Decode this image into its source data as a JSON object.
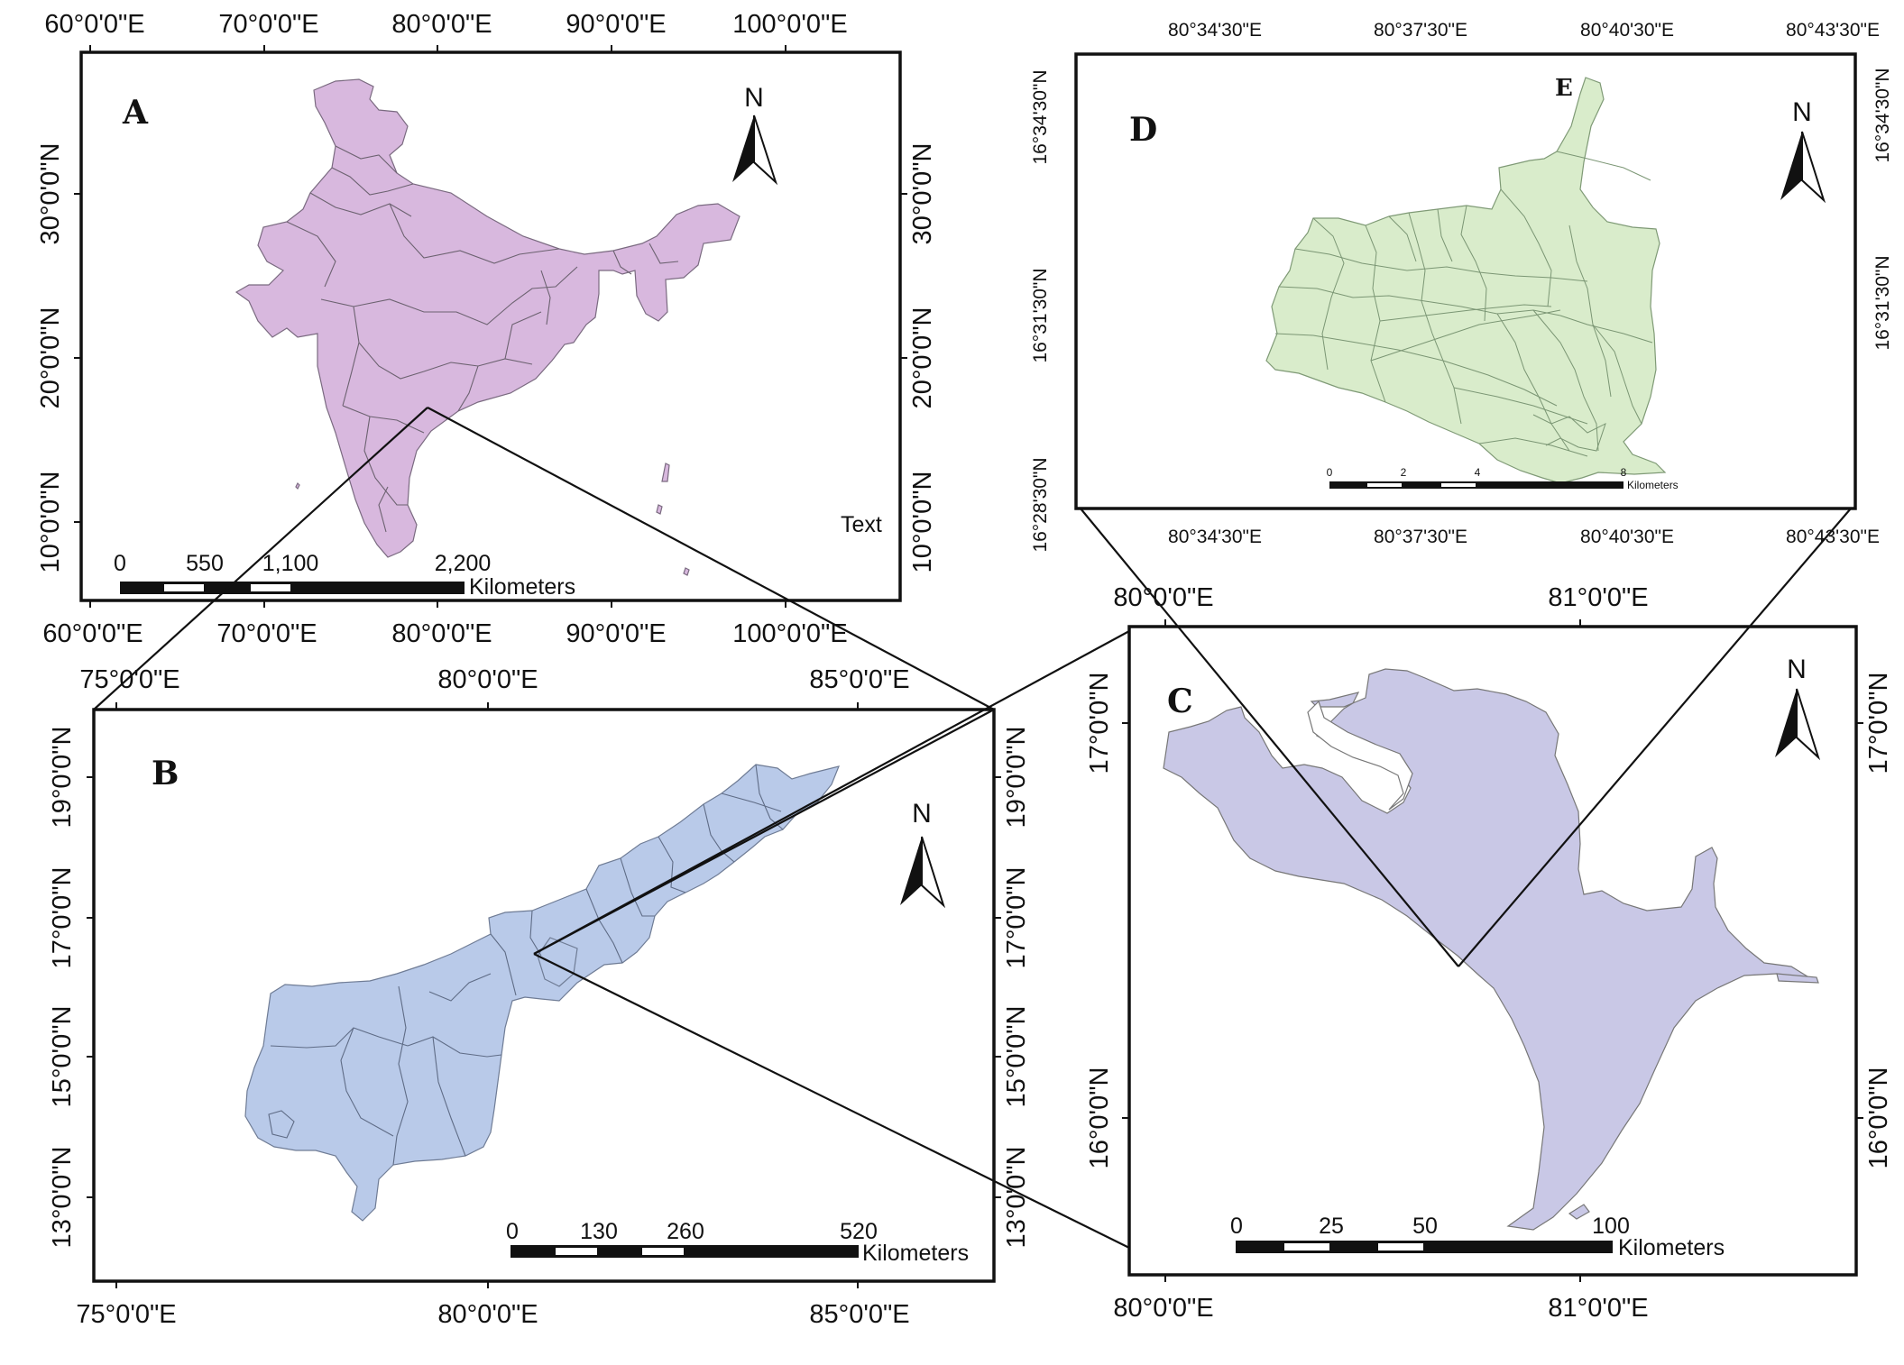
{
  "panels": {
    "A": {
      "label": "A",
      "top_ticks": [
        "60°0'0\"E",
        "70°0'0\"E",
        "80°0'0\"E",
        "90°0'0\"E",
        "100°0'0\"E"
      ],
      "bottom_ticks": [
        "60°0'0\"E",
        "70°0'0\"E",
        "80°0'0\"E",
        "90°0'0\"E",
        "100°0'0\"E"
      ],
      "left_ticks": [
        "30°0'0\"N",
        "20°0'0\"N",
        "10°0'0\"N"
      ],
      "right_ticks": [
        "30°0'0\"N",
        "20°0'0\"N",
        "10°0'0\"N"
      ],
      "north": "N",
      "extra_text": "Text",
      "scale_labels": [
        "0",
        "550",
        "1,100",
        "2,200"
      ],
      "scale_unit": "Kilometers",
      "fill_color": "#d8b8de"
    },
    "B": {
      "label": "B",
      "top_ticks": [
        "75°0'0\"E",
        "80°0'0\"E",
        "85°0'0\"E"
      ],
      "bottom_ticks": [
        "75°0'0\"E",
        "80°0'0\"E",
        "85°0'0\"E"
      ],
      "left_ticks": [
        "19°0'0\"N",
        "17°0'0\"N",
        "15°0'0\"N",
        "13°0'0\"N"
      ],
      "right_ticks": [
        "19°0'0\"N",
        "17°0'0\"N",
        "15°0'0\"N",
        "13°0'0\"N"
      ],
      "north": "N",
      "scale_labels": [
        "0",
        "130",
        "260",
        "520"
      ],
      "scale_unit": "Kilometers",
      "fill_color": "#b9cae9"
    },
    "C": {
      "label": "C",
      "top_ticks": [
        "80°0'0\"E",
        "81°0'0\"E"
      ],
      "bottom_ticks": [
        "80°0'0\"E",
        "81°0'0\"E"
      ],
      "left_ticks": [
        "17°0'0\"N",
        "16°0'0\"N"
      ],
      "right_ticks": [
        "17°0'0\"N",
        "16°0'0\"N"
      ],
      "north": "N",
      "scale_labels": [
        "0",
        "25",
        "50",
        "100"
      ],
      "scale_unit": "Kilometers",
      "fill_color": "#c9c8e6"
    },
    "D": {
      "label": "D",
      "sub_label": "E",
      "top_ticks": [
        "80°34'30\"E",
        "80°37'30\"E",
        "80°40'30\"E",
        "80°43'30\"E"
      ],
      "bottom_ticks": [
        "80°34'30\"E",
        "80°37'30\"E",
        "80°40'30\"E",
        "80°43'30\"E"
      ],
      "left_ticks": [
        "16°34'30\"N",
        "16°31'30\"N",
        "16°28'30\"N"
      ],
      "right_ticks": [
        "16°34'30\"N",
        "16°31'30\"N"
      ],
      "north": "N",
      "scale_labels": [
        "0",
        "2",
        "4",
        "8"
      ],
      "scale_unit": "Kilometers",
      "fill_color": "#d9eccb"
    }
  }
}
